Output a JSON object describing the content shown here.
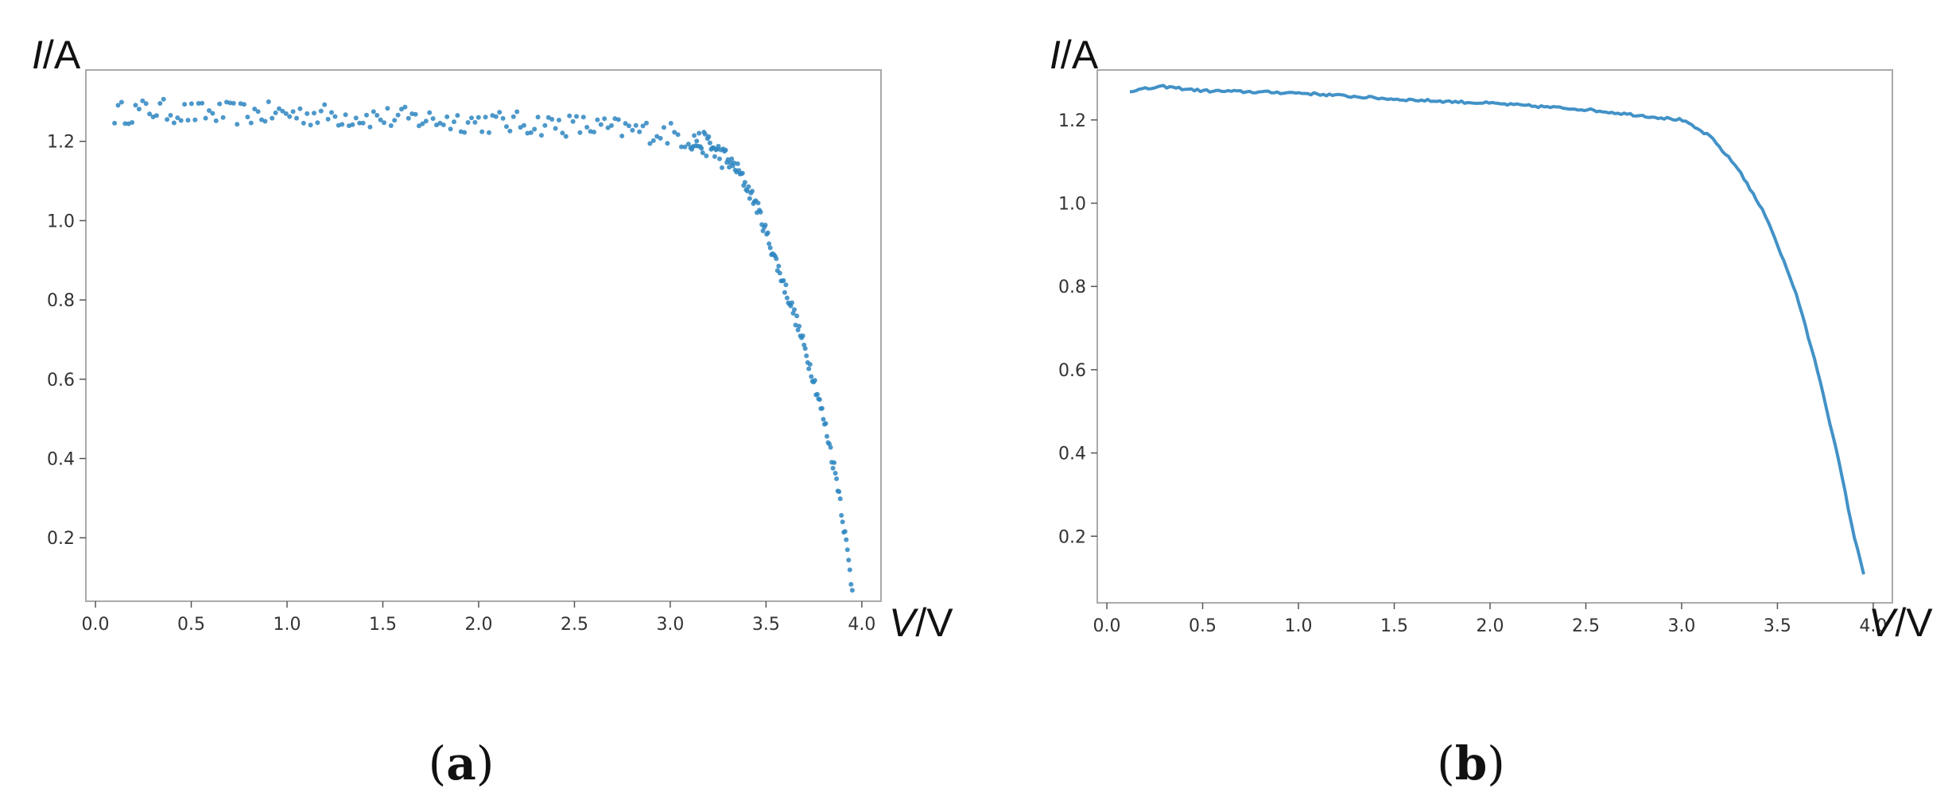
{
  "chart_data": [
    {
      "type": "scatter",
      "panel_label": "a",
      "ylabel_var": "I",
      "ylabel_unit": "A",
      "xlabel_var": "V",
      "xlabel_unit": "V",
      "xlim": [
        -0.05,
        4.1
      ],
      "ylim": [
        0.04,
        1.38
      ],
      "xticks": [
        "0.0",
        "0.5",
        "1.0",
        "1.5",
        "2.0",
        "2.5",
        "3.0",
        "3.5",
        "4.0"
      ],
      "yticks": [
        "0.2",
        "0.4",
        "0.6",
        "0.8",
        "1.0",
        "1.2"
      ],
      "color": "#2e86c1",
      "curve": {
        "v": [
          0.1,
          0.3,
          0.5,
          1.0,
          1.5,
          2.0,
          2.5,
          3.0,
          3.2,
          3.35,
          3.45,
          3.55,
          3.65,
          3.75,
          3.82,
          3.88,
          3.92,
          3.95
        ],
        "i": [
          1.27,
          1.28,
          1.27,
          1.27,
          1.26,
          1.25,
          1.24,
          1.22,
          1.19,
          1.13,
          1.04,
          0.9,
          0.76,
          0.6,
          0.46,
          0.32,
          0.18,
          0.07
        ]
      },
      "noise": 0.03,
      "points": 300
    },
    {
      "type": "line",
      "panel_label": "b",
      "ylabel_var": "I",
      "ylabel_unit": "A",
      "xlabel_var": "V",
      "xlabel_unit": "V",
      "xlim": [
        -0.05,
        4.1
      ],
      "ylim": [
        0.04,
        1.32
      ],
      "xticks": [
        "0.0",
        "0.5",
        "1.0",
        "1.5",
        "2.0",
        "2.5",
        "3.0",
        "3.5",
        "4.0"
      ],
      "yticks": [
        "0.2",
        "0.4",
        "0.6",
        "0.8",
        "1.0",
        "1.2"
      ],
      "color": "#2e86c1",
      "curve": {
        "v": [
          0.12,
          0.3,
          0.5,
          1.0,
          1.5,
          2.0,
          2.5,
          3.0,
          3.15,
          3.3,
          3.45,
          3.6,
          3.72,
          3.82,
          3.9,
          3.95
        ],
        "i": [
          1.27,
          1.28,
          1.27,
          1.265,
          1.25,
          1.24,
          1.225,
          1.2,
          1.16,
          1.08,
          0.96,
          0.78,
          0.58,
          0.38,
          0.2,
          0.11
        ]
      }
    }
  ]
}
